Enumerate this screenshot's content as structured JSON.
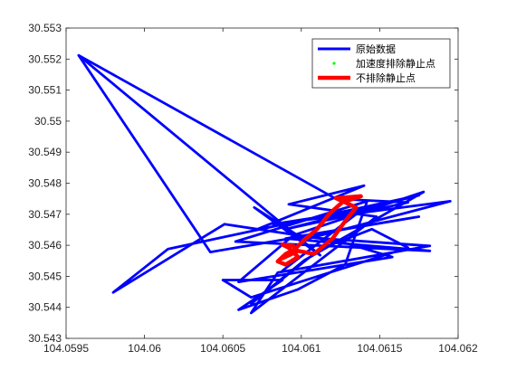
{
  "chart_data": {
    "type": "line",
    "title": "",
    "xlabel": "",
    "ylabel": "",
    "xlim": [
      104.0595,
      104.062
    ],
    "ylim": [
      30.543,
      30.553
    ],
    "x_ticks": [
      104.0595,
      104.06,
      104.0605,
      104.061,
      104.0615,
      104.062
    ],
    "x_tick_labels": [
      "104.0595",
      "104.06",
      "104.0605",
      "104.061",
      "104.0615",
      "104.062"
    ],
    "y_ticks": [
      30.543,
      30.544,
      30.545,
      30.546,
      30.547,
      30.548,
      30.549,
      30.55,
      30.551,
      30.552,
      30.553
    ],
    "y_tick_labels": [
      "30.543",
      "30.544",
      "30.545",
      "30.546",
      "30.547",
      "30.548",
      "30.549",
      "30.55",
      "30.551",
      "30.552",
      "30.553"
    ],
    "grid": false,
    "legend_position": "top-right",
    "series": [
      {
        "name": "原始数据",
        "color": "#0000ff",
        "style": "line",
        "points": [
          [
            104.05958,
            30.55212
          ],
          [
            104.06122,
            30.5475
          ],
          [
            104.06168,
            30.54738
          ],
          [
            104.0609,
            30.54652
          ],
          [
            104.06175,
            30.54761
          ],
          [
            104.06015,
            30.54588
          ],
          [
            104.0598,
            30.54448
          ],
          [
            104.06051,
            30.54668
          ],
          [
            104.0611,
            30.54623
          ],
          [
            104.06182,
            30.54598
          ],
          [
            104.06085,
            30.54512
          ],
          [
            104.06068,
            30.54382
          ],
          [
            104.06148,
            30.54692
          ],
          [
            104.06092,
            30.54732
          ],
          [
            104.0614,
            30.54792
          ],
          [
            104.06072,
            30.54652
          ],
          [
            104.06125,
            30.54612
          ],
          [
            104.06158,
            30.54562
          ],
          [
            104.0606,
            30.54482
          ],
          [
            104.06095,
            30.54632
          ],
          [
            104.06178,
            30.54772
          ],
          [
            104.06102,
            30.54552
          ],
          [
            104.06068,
            30.54412
          ],
          [
            104.06112,
            30.54588
          ],
          [
            104.06145,
            30.54652
          ],
          [
            104.06168,
            30.54592
          ],
          [
            104.06068,
            30.54432
          ],
          [
            104.0605,
            30.54488
          ],
          [
            104.06088,
            30.54488
          ],
          [
            104.0606,
            30.54392
          ],
          [
            104.06098,
            30.54458
          ],
          [
            104.06128,
            30.54538
          ],
          [
            104.06142,
            30.54742
          ],
          [
            104.06058,
            30.54612
          ],
          [
            104.06182,
            30.54582
          ],
          [
            104.0609,
            30.54622
          ],
          [
            104.06175,
            30.54692
          ],
          [
            104.06042,
            30.54578
          ],
          [
            104.05958,
            30.55212
          ],
          [
            104.06112,
            30.54568
          ],
          [
            104.0607,
            30.54722
          ],
          [
            104.06102,
            30.54618
          ],
          [
            104.06195,
            30.54742
          ],
          [
            104.06082,
            30.54668
          ],
          [
            104.06138,
            30.54712
          ],
          [
            104.06088,
            30.54518
          ]
        ]
      },
      {
        "name": "加速度排除静止点",
        "color": "#00ff00",
        "style": "markers",
        "points": []
      },
      {
        "name": "不排除静止点",
        "color": "#ff0000",
        "style": "line",
        "points": [
          [
            104.06088,
            30.54558
          ],
          [
            104.06098,
            30.54582
          ],
          [
            104.06108,
            30.54572
          ],
          [
            104.0612,
            30.54622
          ],
          [
            104.06128,
            30.54678
          ],
          [
            104.06135,
            30.54722
          ],
          [
            104.06122,
            30.54752
          ],
          [
            104.06138,
            30.54758
          ],
          [
            104.06126,
            30.54738
          ],
          [
            104.06118,
            30.54702
          ],
          [
            104.0611,
            30.54652
          ],
          [
            104.06102,
            30.54618
          ],
          [
            104.06096,
            30.54588
          ],
          [
            104.0609,
            30.54572
          ],
          [
            104.06085,
            30.54548
          ],
          [
            104.0609,
            30.54538
          ],
          [
            104.06098,
            30.54562
          ],
          [
            104.06092,
            30.54592
          ],
          [
            104.06088,
            30.54602
          ],
          [
            104.06095,
            30.54598
          ]
        ]
      }
    ]
  }
}
